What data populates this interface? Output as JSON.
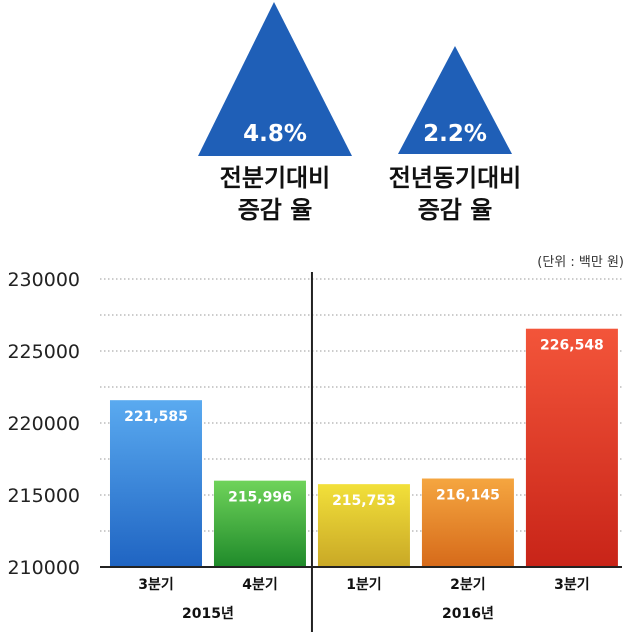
{
  "kpis": [
    {
      "value": "4.8%",
      "label_line1": "전분기대비",
      "label_line2": "증감 율"
    },
    {
      "value": "2.2%",
      "label_line1": "전년동기대비",
      "label_line2": "증감 율"
    }
  ],
  "colors": {
    "triangle": "#1f5fb7",
    "axis": "#222222",
    "grid": "#9a9a9a"
  },
  "chart_data": {
    "type": "bar",
    "unit_note": "(단위 : 백만 원)",
    "ylim": [
      210000,
      230000
    ],
    "yticks": [
      "210000",
      "215000",
      "220000",
      "225000",
      "230000"
    ],
    "grid": true,
    "categories": [
      "3분기",
      "4분기",
      "1분기",
      "2분기",
      "3분기"
    ],
    "values": [
      221585,
      215996,
      215753,
      216145,
      226548
    ],
    "value_labels": [
      "221,585",
      "215,996",
      "215,753",
      "216,145",
      "226,548"
    ],
    "groups": [
      {
        "label": "2015년",
        "count": 2
      },
      {
        "label": "2016년",
        "count": 3
      }
    ],
    "bar_colors": [
      [
        "#5aaaf0",
        "#1f64c2"
      ],
      [
        "#6fd35a",
        "#1f8a2a"
      ],
      [
        "#f2e03a",
        "#c9a826"
      ],
      [
        "#f5a640",
        "#d66a1a"
      ],
      [
        "#f3553a",
        "#c82418"
      ]
    ]
  }
}
